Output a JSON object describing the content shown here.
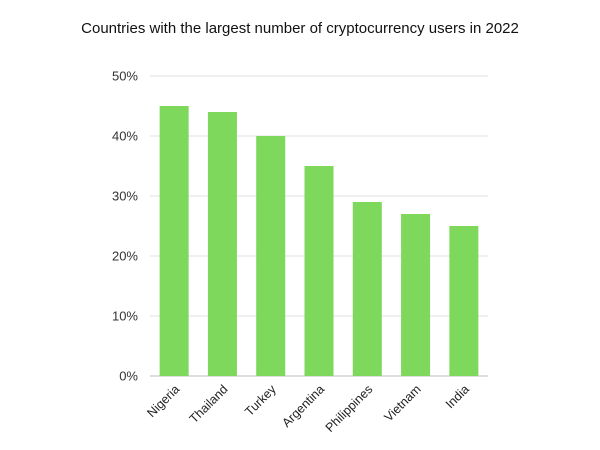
{
  "chart_data": {
    "type": "bar",
    "title": "Countries with the largest number of cryptocurrency users in 2022",
    "xlabel": "",
    "ylabel": "",
    "categories": [
      "Nigeria",
      "Thailand",
      "Turkey",
      "Argentina",
      "Philippines",
      "Vietnam",
      "India"
    ],
    "values": [
      45,
      44,
      40,
      35,
      29,
      27,
      25
    ],
    "ylim": [
      0,
      50
    ],
    "yticks": [
      0,
      10,
      20,
      30,
      40,
      50
    ],
    "ytick_labels": [
      "0%",
      "10%",
      "20%",
      "30%",
      "40%",
      "50%"
    ],
    "grid": true,
    "legend": "none",
    "bar_color": "#7dd85c",
    "grid_color": "#e0e0e0",
    "axis_color": "#bdbdbd"
  }
}
